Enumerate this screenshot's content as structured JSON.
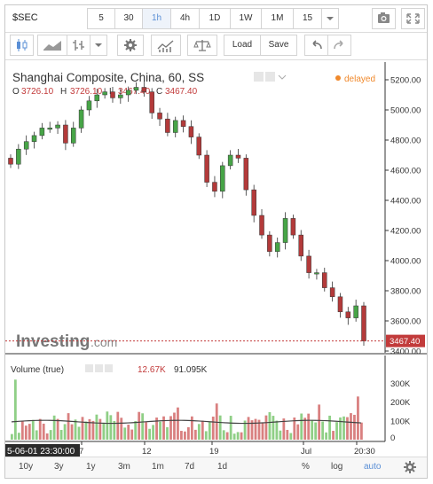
{
  "toolbar": {
    "symbol": "$SEC",
    "intervals": [
      "5",
      "30",
      "1h",
      "4h",
      "1D",
      "1W",
      "1M",
      "15"
    ],
    "selected_interval": "1h",
    "load_label": "Load",
    "save_label": "Save"
  },
  "legend": {
    "title": "Shanghai Composite, China, 60, SS",
    "delayed": "delayed",
    "o_label": "O",
    "o_value": "3726.10",
    "h_label": "H",
    "h_value": "3726.10",
    "l_label": "L",
    "l_value": "3467.40",
    "c_label": "C",
    "c_value": "3467.40"
  },
  "watermark": {
    "brand": "Investing",
    "suffix": ".com"
  },
  "price_badge": "3467.40",
  "volume": {
    "label": "Volume (true)",
    "value1": "12.67K",
    "value2": "91.095K"
  },
  "cursor_date": "5-06-01 23:30:00",
  "bottombar": {
    "ranges": [
      "10y",
      "3y",
      "1y",
      "3m",
      "1m",
      "7d",
      "1d"
    ],
    "percent": "%",
    "log": "log",
    "auto": "auto"
  },
  "colors": {
    "up": "#47a447",
    "down": "#b33a3a",
    "accent": "#5a8fd6",
    "delayed": "#f0892c",
    "price_line": "#c23b3b"
  },
  "chart_data": {
    "type": "candlestick",
    "title": "Shanghai Composite, China, 60, SS",
    "ylim": [
      3400,
      5300
    ],
    "yticks": [
      3400,
      3600,
      3800,
      4000,
      4200,
      4400,
      4600,
      4800,
      5000,
      5200
    ],
    "xticks": [
      "7",
      "12",
      "19",
      "Jul",
      "20:30"
    ],
    "closes": [
      4640,
      4740,
      4790,
      4830,
      4880,
      4880,
      4900,
      4780,
      4880,
      5000,
      5060,
      5100,
      5120,
      5080,
      5100,
      5130,
      5150,
      5120,
      4980,
      4940,
      4850,
      4930,
      4890,
      4820,
      4700,
      4520,
      4460,
      4630,
      4700,
      4680,
      4470,
      4300,
      4170,
      4060,
      4120,
      4280,
      4170,
      4030,
      3920,
      3920,
      3820,
      3760,
      3660,
      3620,
      3700,
      3467
    ],
    "volume_ylim": [
      0,
      340
    ],
    "volume_yticks": [
      "100K",
      "200K",
      "300K"
    ]
  }
}
